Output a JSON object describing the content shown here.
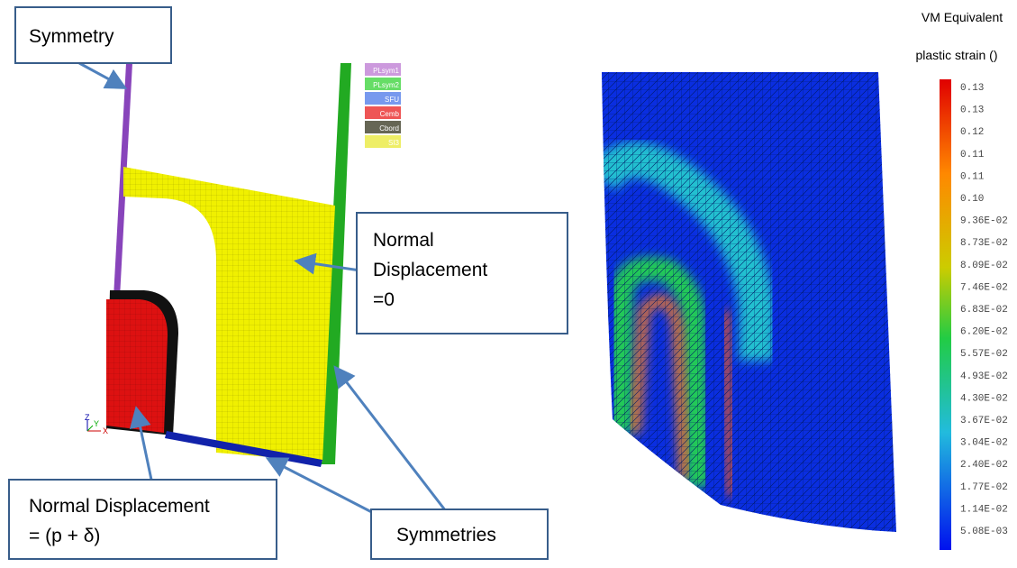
{
  "callouts": {
    "symmetry": "Symmetry",
    "normal_zero": [
      "Normal",
      "Displacement",
      "=0"
    ],
    "normal_p": [
      "Normal Displacement",
      "= (p + δ)"
    ],
    "symmetries": "Symmetries"
  },
  "model_legend": [
    "PLsym1",
    "PLsym2",
    "SFU",
    "Cemb",
    "Cbord",
    "SI3"
  ],
  "axes": {
    "z": "Z",
    "y": "Y",
    "x": "X"
  },
  "colorbar": {
    "title": [
      "VM Equivalent",
      "plastic strain ()"
    ],
    "labels": [
      "0.13",
      "0.13",
      "0.12",
      "0.11",
      "0.11",
      "0.10",
      "9.36E-02",
      "8.73E-02",
      "8.09E-02",
      "7.46E-02",
      "6.83E-02",
      "6.20E-02",
      "5.57E-02",
      "4.93E-02",
      "4.30E-02",
      "3.67E-02",
      "3.04E-02",
      "2.40E-02",
      "1.77E-02",
      "1.14E-02",
      "5.08E-03"
    ]
  }
}
